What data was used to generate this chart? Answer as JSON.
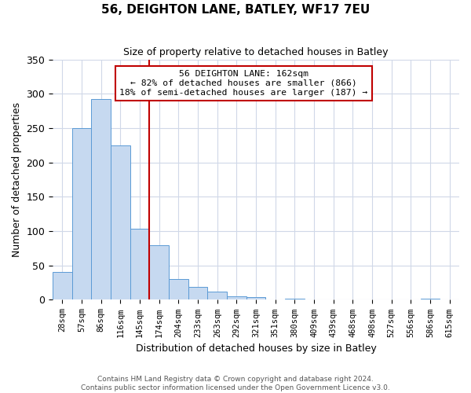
{
  "title": "56, DEIGHTON LANE, BATLEY, WF17 7EU",
  "subtitle": "Size of property relative to detached houses in Batley",
  "xlabel": "Distribution of detached houses by size in Batley",
  "ylabel": "Number of detached properties",
  "bin_labels": [
    "28sqm",
    "57sqm",
    "86sqm",
    "116sqm",
    "145sqm",
    "174sqm",
    "204sqm",
    "233sqm",
    "263sqm",
    "292sqm",
    "321sqm",
    "351sqm",
    "380sqm",
    "409sqm",
    "439sqm",
    "468sqm",
    "498sqm",
    "527sqm",
    "556sqm",
    "586sqm",
    "615sqm"
  ],
  "bar_values": [
    40,
    250,
    292,
    225,
    103,
    79,
    30,
    19,
    12,
    5,
    4,
    0,
    2,
    0,
    1,
    0,
    0,
    0,
    0,
    2,
    0
  ],
  "bar_color": "#c6d9f0",
  "bar_edge_color": "#5b9bd5",
  "vline_color": "#c00000",
  "annotation_line1": "56 DEIGHTON LANE: 162sqm",
  "annotation_line2": "← 82% of detached houses are smaller (866)",
  "annotation_line3": "18% of semi-detached houses are larger (187) →",
  "annotation_box_color": "#ffffff",
  "annotation_box_edge": "#c00000",
  "ylim": [
    0,
    350
  ],
  "yticks": [
    0,
    50,
    100,
    150,
    200,
    250,
    300,
    350
  ],
  "footer": "Contains HM Land Registry data © Crown copyright and database right 2024.\nContains public sector information licensed under the Open Government Licence v3.0.",
  "background_color": "#ffffff",
  "grid_color": "#d0d8e8"
}
